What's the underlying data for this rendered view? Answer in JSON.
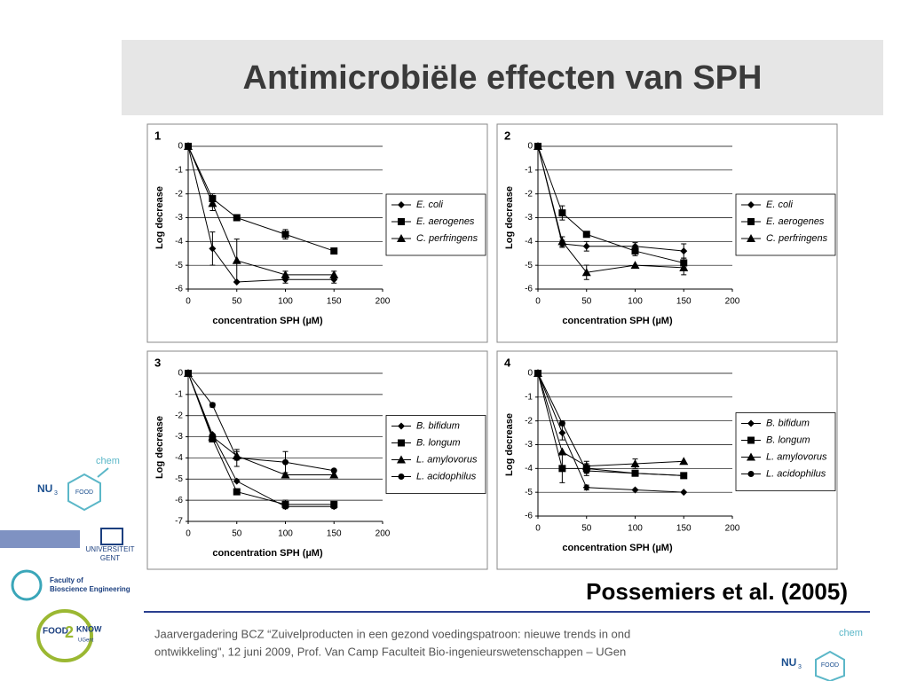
{
  "title": "Antimicrobiële effecten van SPH",
  "citation": "Possemiers et al. (2005)",
  "footer": [
    "Jaarvergadering BCZ “Zuivelproducten in een gezond voedingspatroon: nieuwe trends in ond",
    "ontwikkeling\", 12 juni 2009, Prof. Van Camp  Faculteit Bio-ingenieurswetenschappen – UGen"
  ],
  "logos": {
    "chem": "chem",
    "nu": "NU",
    "nu_sub": "3",
    "food": "FOOD",
    "university": [
      "UNIVERSITEIT",
      "GENT"
    ],
    "faculty": [
      "Faculty of",
      "Bioscience Engineering"
    ],
    "food2know": [
      "FOOD",
      "2",
      "KNOW",
      "UGent"
    ]
  },
  "chart_data": [
    {
      "type": "line",
      "label": "1",
      "xlabel": "concentration SPH (µM)",
      "ylabel": "Log decrease",
      "x": [
        0,
        25,
        50,
        100,
        150
      ],
      "xlim": [
        0,
        200
      ],
      "xticks": [
        0,
        50,
        100,
        150,
        200
      ],
      "ylim": [
        -6,
        0
      ],
      "yticks": [
        0,
        -1,
        -2,
        -3,
        -4,
        -5,
        -6
      ],
      "grid": true,
      "legend": "right",
      "series": [
        {
          "name": "E. coli",
          "color": "#000000",
          "marker": "diamond",
          "values": [
            0,
            -4.3,
            -5.7,
            -5.6,
            -5.6
          ],
          "errors": [
            null,
            0.7,
            null,
            0.15,
            0.15
          ]
        },
        {
          "name": "E. aerogenes",
          "color": "#000000",
          "marker": "square",
          "values": [
            0,
            -2.2,
            -3.0,
            -3.7,
            -4.4
          ],
          "errors": [
            null,
            0.2,
            0.1,
            0.2,
            null
          ]
        },
        {
          "name": "C. perfringens",
          "color": "#000000",
          "marker": "triangle",
          "values": [
            0,
            -2.4,
            -4.8,
            -5.4,
            -5.4
          ],
          "errors": [
            null,
            0.3,
            0.9,
            0.15,
            0.15
          ]
        }
      ]
    },
    {
      "type": "line",
      "label": "2",
      "xlabel": "concentration SPH (µM)",
      "ylabel": "Log decrease",
      "x": [
        0,
        25,
        50,
        100,
        150
      ],
      "xlim": [
        0,
        200
      ],
      "xticks": [
        0,
        50,
        100,
        150,
        200
      ],
      "ylim": [
        -6,
        0
      ],
      "yticks": [
        0,
        -1,
        -2,
        -3,
        -4,
        -5,
        -6
      ],
      "grid": true,
      "legend": "right",
      "series": [
        {
          "name": "E. coli",
          "color": "#000000",
          "marker": "diamond",
          "values": [
            0,
            -4.1,
            -4.2,
            -4.2,
            -4.4
          ],
          "errors": [
            null,
            0.15,
            0.2,
            0.15,
            0.3
          ]
        },
        {
          "name": "E. aerogenes",
          "color": "#000000",
          "marker": "square",
          "values": [
            0,
            -2.8,
            -3.7,
            -4.4,
            -4.9
          ],
          "errors": [
            null,
            0.3,
            null,
            0.2,
            0.2
          ]
        },
        {
          "name": "C. perfringens",
          "color": "#000000",
          "marker": "triangle",
          "values": [
            0,
            -4.0,
            -5.3,
            -5.0,
            -5.1
          ],
          "errors": [
            null,
            0.2,
            0.3,
            null,
            0.3
          ]
        }
      ]
    },
    {
      "type": "line",
      "label": "3",
      "xlabel": "concentration SPH (µM)",
      "ylabel": "Log decrease",
      "x": [
        0,
        25,
        50,
        100,
        150
      ],
      "xlim": [
        0,
        200
      ],
      "xticks": [
        0,
        50,
        100,
        150,
        200
      ],
      "ylim": [
        -7,
        0
      ],
      "yticks": [
        0,
        -1,
        -2,
        -3,
        -4,
        -5,
        -6,
        -7
      ],
      "grid": true,
      "legend": "right",
      "series": [
        {
          "name": "B. bifidum",
          "color": "#000000",
          "marker": "diamond",
          "values": [
            0,
            -2.9,
            -5.1,
            -6.3,
            -6.3
          ],
          "errors": [
            null,
            null,
            null,
            0.1,
            0.1
          ]
        },
        {
          "name": "B. longum",
          "color": "#000000",
          "marker": "square",
          "values": [
            0,
            -3.1,
            -5.6,
            -6.2,
            -6.2
          ],
          "errors": [
            null,
            0.1,
            null,
            0.2,
            0.1
          ]
        },
        {
          "name": "L. amylovorus",
          "color": "#000000",
          "marker": "triangle",
          "values": [
            0,
            -3.0,
            -3.9,
            -4.8,
            -4.8
          ],
          "errors": [
            null,
            null,
            0.2,
            null,
            null
          ]
        },
        {
          "name": "L. acidophilus",
          "color": "#000000",
          "marker": "circle",
          "values": [
            0,
            -1.5,
            -4.0,
            -4.2,
            -4.6
          ],
          "errors": [
            null,
            0.1,
            0.4,
            0.5,
            null
          ]
        }
      ]
    },
    {
      "type": "line",
      "label": "4",
      "xlabel": "concentration SPH (µM)",
      "ylabel": "Log decrease",
      "x": [
        0,
        25,
        50,
        100,
        150
      ],
      "xlim": [
        0,
        200
      ],
      "xticks": [
        0,
        50,
        100,
        150,
        200
      ],
      "ylim": [
        -6,
        0
      ],
      "yticks": [
        0,
        -1,
        -2,
        -3,
        -4,
        -5,
        -6
      ],
      "grid": true,
      "legend": "right",
      "series": [
        {
          "name": "B. bifidum",
          "color": "#000000",
          "marker": "diamond",
          "values": [
            0,
            -2.5,
            -4.8,
            -4.9,
            -5.0
          ],
          "errors": [
            null,
            0.3,
            0.1,
            null,
            null
          ]
        },
        {
          "name": "B. longum",
          "color": "#000000",
          "marker": "square",
          "values": [
            0,
            -4.0,
            -4.0,
            -4.2,
            -4.3
          ],
          "errors": [
            null,
            0.6,
            0.2,
            null,
            null
          ]
        },
        {
          "name": "L. amylovorus",
          "color": "#000000",
          "marker": "triangle",
          "values": [
            0,
            -3.3,
            -3.9,
            -3.8,
            -3.7
          ],
          "errors": [
            null,
            null,
            0.2,
            0.2,
            null
          ]
        },
        {
          "name": "L. acidophilus",
          "color": "#000000",
          "marker": "circle",
          "values": [
            0,
            -2.1,
            -4.1,
            -4.2,
            -4.3
          ],
          "errors": [
            null,
            0.1,
            0.2,
            null,
            null
          ]
        }
      ]
    }
  ]
}
